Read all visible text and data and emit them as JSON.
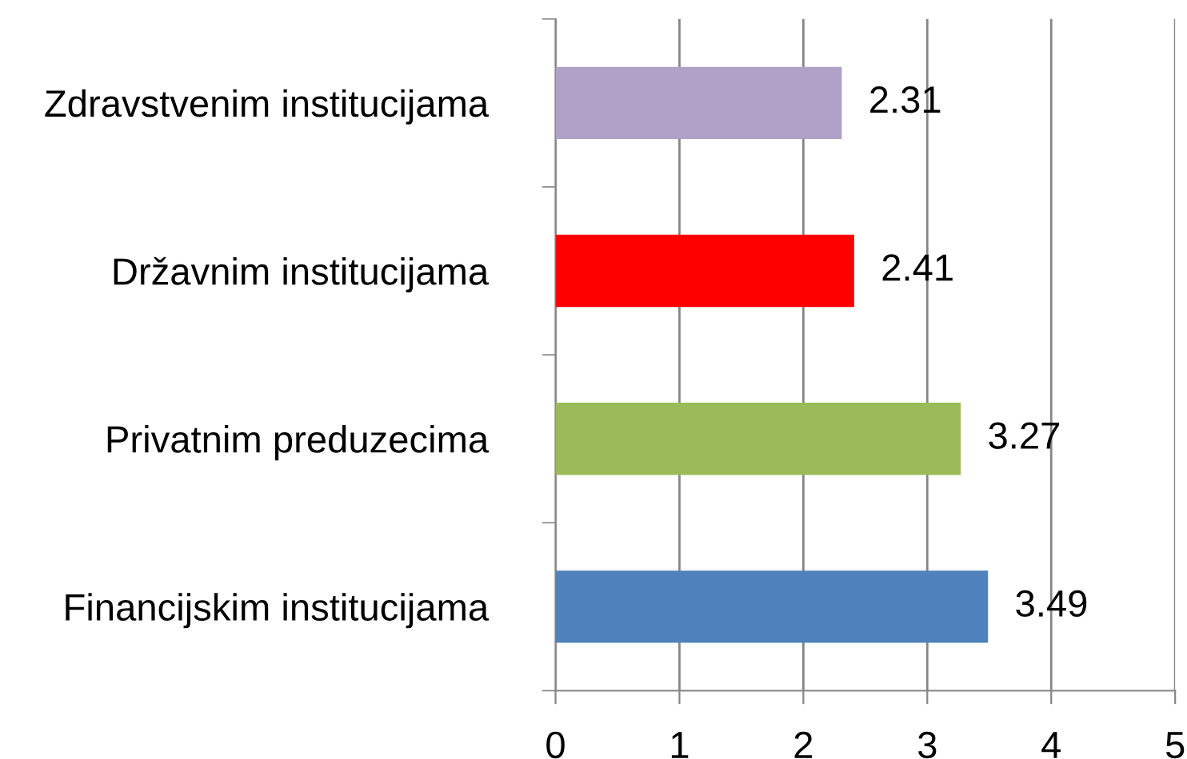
{
  "chart_data": {
    "type": "bar",
    "orientation": "horizontal",
    "categories": [
      "Zdravstvenim institucijama",
      "Državnim institucijama",
      "Privatnim preduzecima",
      "Financijskim institucijama"
    ],
    "values": [
      2.31,
      2.41,
      3.27,
      3.49
    ],
    "colors": [
      "#b1a0c7",
      "#ff0000",
      "#9bbb59",
      "#4f81bd"
    ],
    "xlim": [
      0,
      5
    ],
    "xticks": [
      0,
      1,
      2,
      3,
      4,
      5
    ],
    "grid": "x",
    "data_labels": true
  }
}
